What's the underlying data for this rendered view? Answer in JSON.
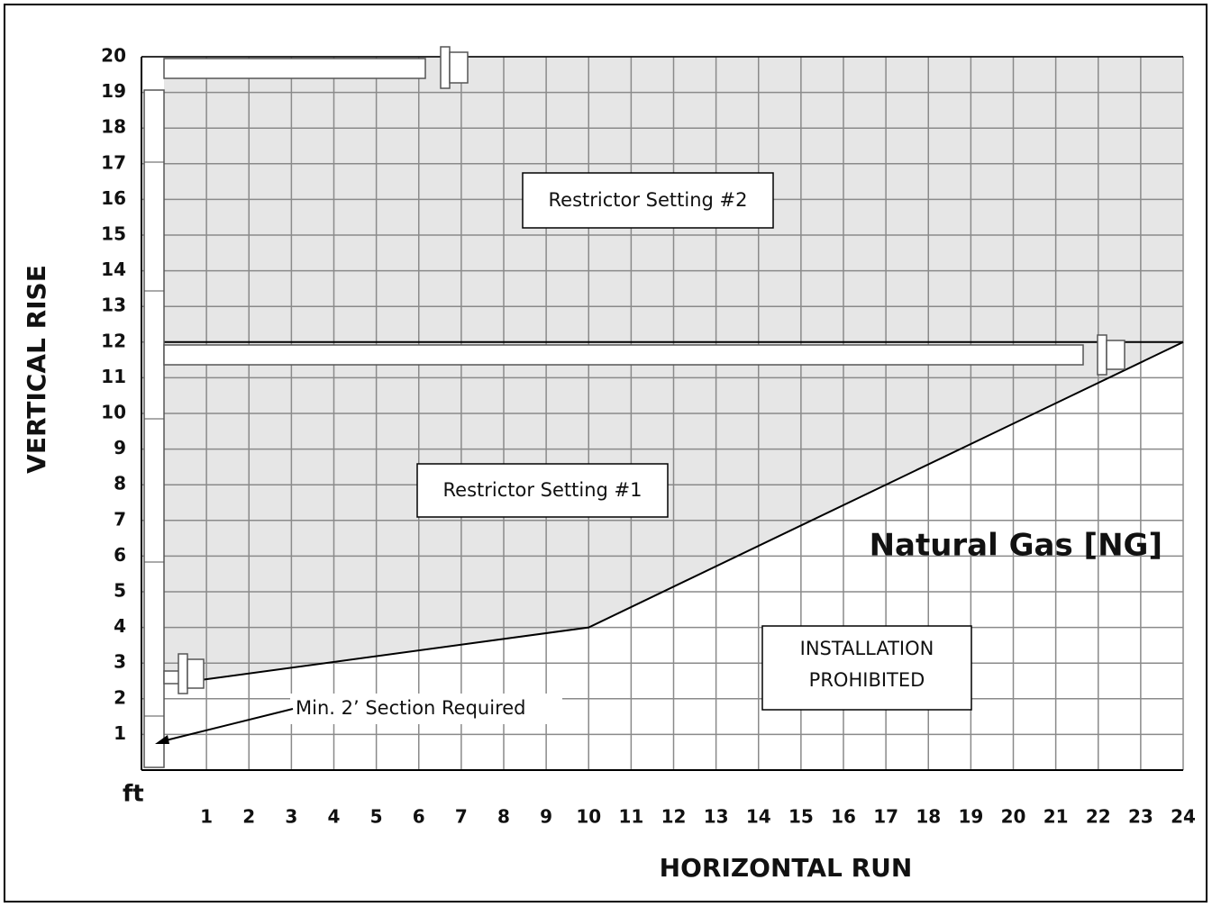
{
  "chart_data": {
    "type": "area",
    "x_label": "HORIZONTAL RUN",
    "y_label": "VERTICAL RISE",
    "unit_label": "ft",
    "xlim": [
      0,
      24
    ],
    "ylim": [
      0,
      20
    ],
    "xticks": [
      1,
      2,
      3,
      4,
      5,
      6,
      7,
      8,
      9,
      10,
      11,
      12,
      13,
      14,
      15,
      16,
      17,
      18,
      19,
      20,
      21,
      22,
      23,
      24
    ],
    "yticks": [
      1,
      2,
      3,
      4,
      5,
      6,
      7,
      8,
      9,
      10,
      11,
      12,
      13,
      14,
      15,
      16,
      17,
      18,
      19,
      20
    ],
    "grid": true,
    "fill_color": "#e6e6e6",
    "boundary": {
      "x": [
        0.7,
        10,
        24
      ],
      "y": [
        2.5,
        4,
        12
      ]
    },
    "region_divide": 12,
    "region_labels": [
      "Restrictor Setting #2",
      "Restrictor Setting #1"
    ],
    "prohibited_label": [
      "INSTALLATION",
      "PROHIBITED"
    ],
    "fuel_label": "Natural Gas [NG]",
    "note": "Min. 2’ Section Required"
  }
}
